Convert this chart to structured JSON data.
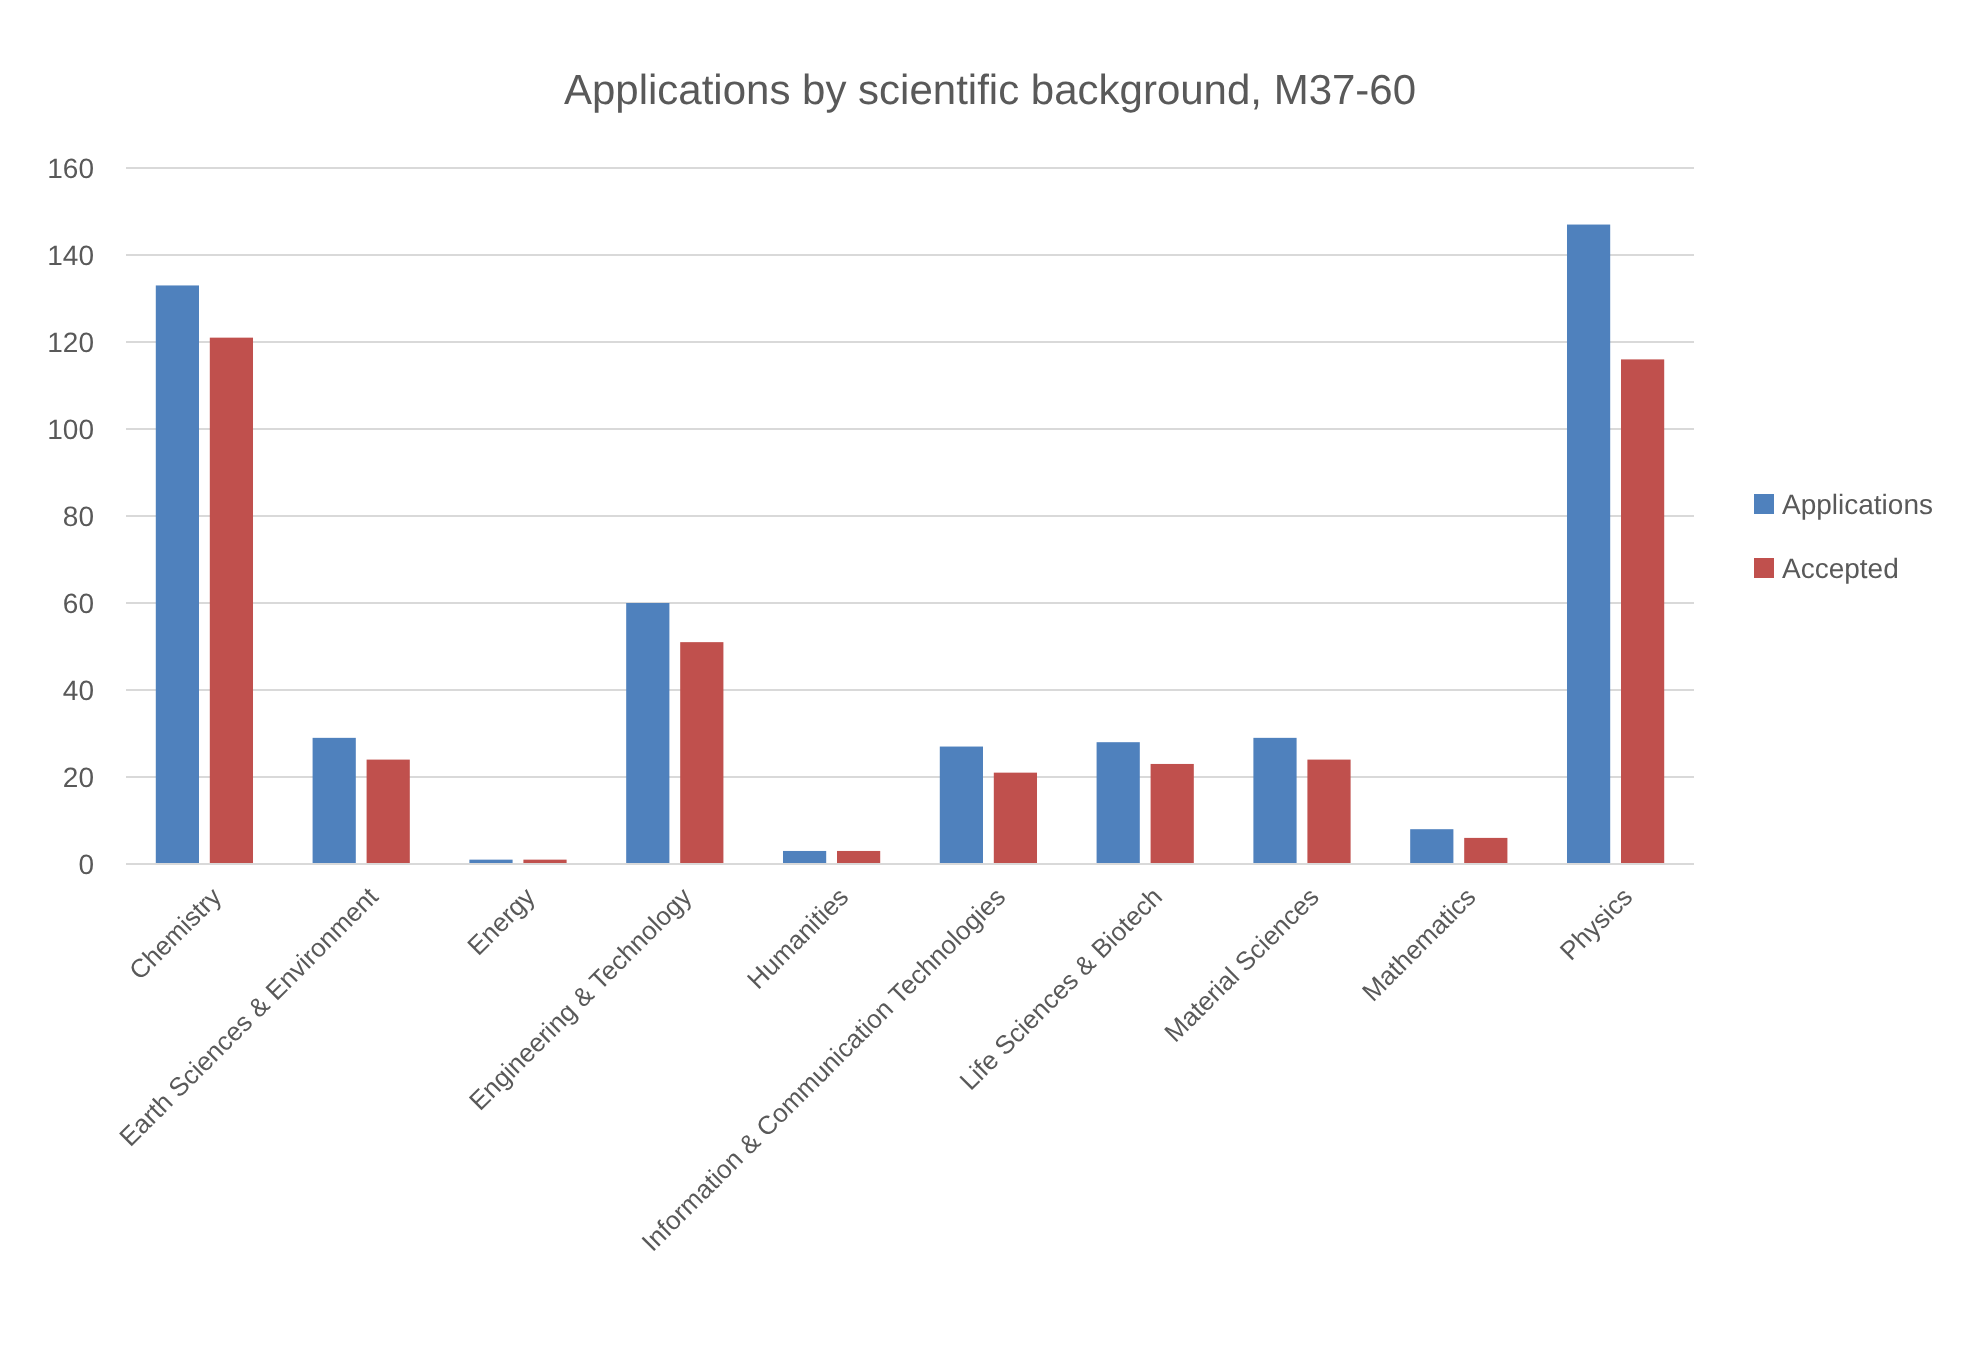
{
  "chart_data": {
    "type": "bar",
    "title": "Applications by scientific background, M37-60",
    "categories": [
      "Chemistry",
      "Earth Sciences & Environment",
      "Energy",
      "Engineering & Technology",
      "Humanities",
      "Information & Communication Technologies",
      "Life Sciences & Biotech",
      "Material Sciences",
      "Mathematics",
      "Physics"
    ],
    "series": [
      {
        "name": "Applications",
        "color": "#4f81bd",
        "values": [
          133,
          29,
          1,
          60,
          3,
          27,
          28,
          29,
          8,
          147
        ]
      },
      {
        "name": "Accepted",
        "color": "#c0504d",
        "values": [
          121,
          24,
          1,
          51,
          3,
          21,
          23,
          24,
          6,
          116
        ]
      }
    ],
    "ylim": [
      0,
      160
    ],
    "yticks": [
      0,
      20,
      40,
      60,
      80,
      100,
      120,
      140,
      160
    ],
    "grid": "y",
    "legend": "right"
  }
}
